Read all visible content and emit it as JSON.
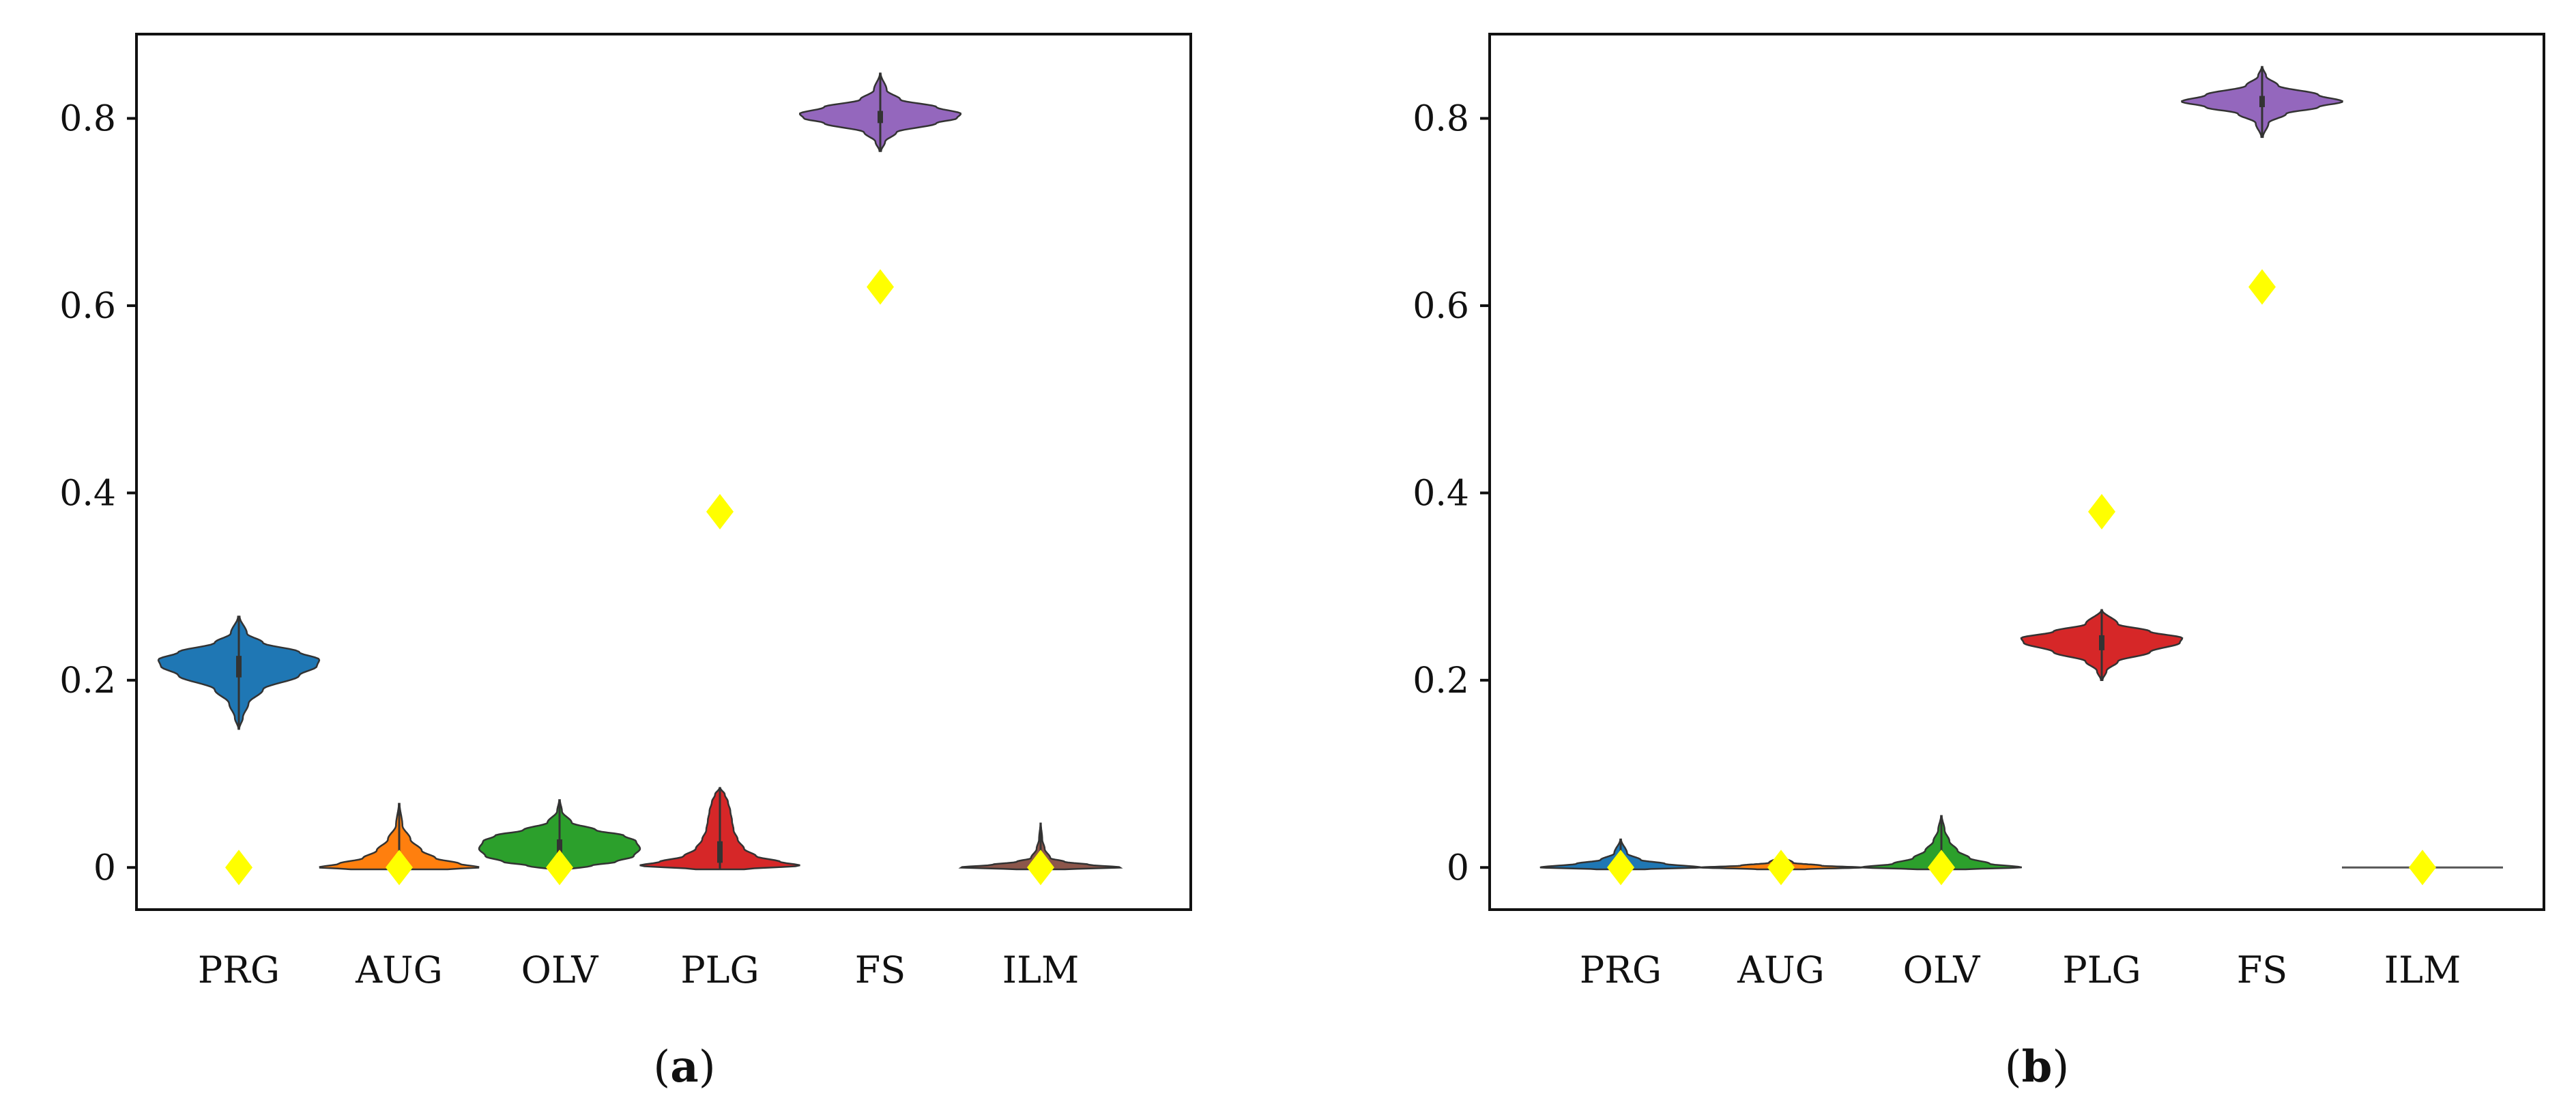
{
  "colors": {
    "PRG": "#1f77b4",
    "AUG": "#ff7f0e",
    "OLV": "#2ca02c",
    "PLG": "#d62728",
    "FS": "#9467bd",
    "ILM": "#8c564b",
    "marker": "#ffff00"
  },
  "chart_data": [
    {
      "type": "violin",
      "caption_label": "a",
      "categories": [
        "PRG",
        "AUG",
        "OLV",
        "PLG",
        "FS",
        "ILM"
      ],
      "ylim": [
        -0.045,
        0.89
      ],
      "yticks": [
        0,
        0.2,
        0.4,
        0.6,
        0.8
      ],
      "ytick_labels": [
        "0",
        "0.2",
        "0.4",
        "0.6",
        "0.8"
      ],
      "xlabel": "",
      "ylabel": "",
      "series": [
        {
          "name": "PRG",
          "min": 0.148,
          "max": 0.268,
          "q1": 0.203,
          "median": 0.216,
          "q3": 0.226,
          "profile": [
            [
              0.148,
              0.005
            ],
            [
              0.16,
              0.05
            ],
            [
              0.175,
              0.12
            ],
            [
              0.19,
              0.3
            ],
            [
              0.205,
              0.75
            ],
            [
              0.215,
              0.97
            ],
            [
              0.222,
              1.0
            ],
            [
              0.23,
              0.75
            ],
            [
              0.24,
              0.3
            ],
            [
              0.25,
              0.1
            ],
            [
              0.268,
              0.01
            ]
          ],
          "marker": 0.0
        },
        {
          "name": "AUG",
          "min": -0.002,
          "max": 0.068,
          "q1": 0.001,
          "median": 0.003,
          "q3": 0.012,
          "profile": [
            [
              -0.002,
              0.6
            ],
            [
              0.0,
              1.0
            ],
            [
              0.004,
              0.75
            ],
            [
              0.01,
              0.45
            ],
            [
              0.018,
              0.28
            ],
            [
              0.03,
              0.14
            ],
            [
              0.045,
              0.04
            ],
            [
              0.068,
              0.005
            ]
          ],
          "marker": 0.0
        },
        {
          "name": "OLV",
          "min": -0.003,
          "max": 0.072,
          "q1": 0.012,
          "median": 0.022,
          "q3": 0.03,
          "profile": [
            [
              -0.003,
              0.05
            ],
            [
              0.002,
              0.4
            ],
            [
              0.006,
              0.7
            ],
            [
              0.012,
              0.92
            ],
            [
              0.02,
              1.0
            ],
            [
              0.028,
              0.95
            ],
            [
              0.034,
              0.8
            ],
            [
              0.04,
              0.45
            ],
            [
              0.048,
              0.15
            ],
            [
              0.06,
              0.03
            ],
            [
              0.072,
              0.005
            ]
          ],
          "marker": 0.0
        },
        {
          "name": "PLG",
          "min": -0.002,
          "max": 0.085,
          "q1": 0.005,
          "median": 0.012,
          "q3": 0.028,
          "profile": [
            [
              -0.002,
              0.3
            ],
            [
              0.002,
              1.0
            ],
            [
              0.006,
              0.75
            ],
            [
              0.012,
              0.45
            ],
            [
              0.02,
              0.3
            ],
            [
              0.03,
              0.22
            ],
            [
              0.04,
              0.17
            ],
            [
              0.05,
              0.15
            ],
            [
              0.06,
              0.13
            ],
            [
              0.07,
              0.1
            ],
            [
              0.078,
              0.06
            ],
            [
              0.085,
              0.005
            ]
          ],
          "marker": 0.38
        },
        {
          "name": "FS",
          "min": 0.765,
          "max": 0.848,
          "q1": 0.795,
          "median": 0.8,
          "q3": 0.808,
          "profile": [
            [
              0.765,
              0.01
            ],
            [
              0.775,
              0.06
            ],
            [
              0.785,
              0.2
            ],
            [
              0.795,
              0.7
            ],
            [
              0.8,
              0.95
            ],
            [
              0.805,
              1.0
            ],
            [
              0.812,
              0.7
            ],
            [
              0.82,
              0.25
            ],
            [
              0.83,
              0.08
            ],
            [
              0.848,
              0.005
            ]
          ],
          "marker": 0.62
        },
        {
          "name": "ILM",
          "min": -0.002,
          "max": 0.047,
          "q1": 0.0,
          "median": 0.002,
          "q3": 0.006,
          "profile": [
            [
              -0.002,
              0.3
            ],
            [
              0.0,
              1.0
            ],
            [
              0.003,
              0.6
            ],
            [
              0.006,
              0.3
            ],
            [
              0.01,
              0.12
            ],
            [
              0.02,
              0.05
            ],
            [
              0.03,
              0.02
            ],
            [
              0.047,
              0.003
            ]
          ],
          "marker": 0.0
        }
      ]
    },
    {
      "type": "violin",
      "caption_label": "b",
      "categories": [
        "PRG",
        "AUG",
        "OLV",
        "PLG",
        "FS",
        "ILM"
      ],
      "ylim": [
        -0.045,
        0.89
      ],
      "yticks": [
        0,
        0.2,
        0.4,
        0.6,
        0.8
      ],
      "ytick_labels": [
        "0",
        "0.2",
        "0.4",
        "0.6",
        "0.8"
      ],
      "xlabel": "",
      "ylabel": "",
      "series": [
        {
          "name": "PRG",
          "min": -0.002,
          "max": 0.03,
          "q1": 0.0,
          "median": 0.002,
          "q3": 0.005,
          "profile": [
            [
              -0.002,
              0.3
            ],
            [
              0.0,
              1.0
            ],
            [
              0.004,
              0.55
            ],
            [
              0.008,
              0.25
            ],
            [
              0.015,
              0.08
            ],
            [
              0.03,
              0.005
            ]
          ],
          "marker": 0.0
        },
        {
          "name": "AUG",
          "min": -0.002,
          "max": 0.012,
          "q1": 0.0,
          "median": 0.001,
          "q3": 0.002,
          "profile": [
            [
              -0.002,
              0.3
            ],
            [
              0.0,
              1.0
            ],
            [
              0.002,
              0.5
            ],
            [
              0.005,
              0.15
            ],
            [
              0.012,
              0.005
            ]
          ],
          "marker": 0.0
        },
        {
          "name": "OLV",
          "min": -0.002,
          "max": 0.055,
          "q1": 0.0,
          "median": 0.003,
          "q3": 0.01,
          "profile": [
            [
              -0.002,
              0.3
            ],
            [
              0.0,
              1.0
            ],
            [
              0.004,
              0.6
            ],
            [
              0.01,
              0.35
            ],
            [
              0.018,
              0.2
            ],
            [
              0.028,
              0.1
            ],
            [
              0.04,
              0.04
            ],
            [
              0.055,
              0.005
            ]
          ],
          "marker": 0.0
        },
        {
          "name": "PLG",
          "min": 0.2,
          "max": 0.275,
          "q1": 0.232,
          "median": 0.24,
          "q3": 0.248,
          "profile": [
            [
              0.2,
              0.01
            ],
            [
              0.21,
              0.06
            ],
            [
              0.22,
              0.2
            ],
            [
              0.23,
              0.6
            ],
            [
              0.24,
              0.97
            ],
            [
              0.245,
              1.0
            ],
            [
              0.252,
              0.6
            ],
            [
              0.26,
              0.2
            ],
            [
              0.275,
              0.005
            ]
          ],
          "marker": 0.38
        },
        {
          "name": "FS",
          "min": 0.78,
          "max": 0.855,
          "q1": 0.812,
          "median": 0.818,
          "q3": 0.824,
          "profile": [
            [
              0.78,
              0.01
            ],
            [
              0.795,
              0.08
            ],
            [
              0.805,
              0.3
            ],
            [
              0.812,
              0.7
            ],
            [
              0.818,
              1.0
            ],
            [
              0.825,
              0.7
            ],
            [
              0.835,
              0.2
            ],
            [
              0.845,
              0.05
            ],
            [
              0.855,
              0.005
            ]
          ],
          "marker": 0.62
        },
        {
          "name": "ILM",
          "min": 0.0,
          "max": 0.0,
          "q1": 0.0,
          "median": 0.0,
          "q3": 0.0,
          "profile": [],
          "marker": 0.0
        }
      ]
    }
  ]
}
